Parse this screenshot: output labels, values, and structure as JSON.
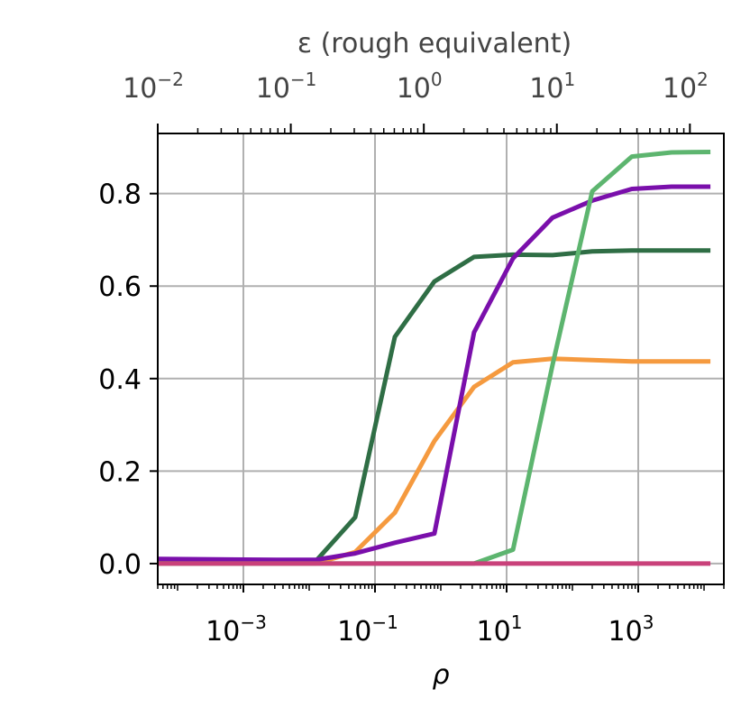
{
  "chart_data": {
    "type": "line",
    "xlabel": "ρ",
    "ylabel": "",
    "xscale": "log",
    "xlim": [
      5e-05,
      20000
    ],
    "ylim": [
      -0.045,
      0.93
    ],
    "grid": true,
    "x_ticks": [
      {
        "value": 0.001,
        "base": "10",
        "exp": "−3"
      },
      {
        "value": 0.1,
        "base": "10",
        "exp": "−1"
      },
      {
        "value": 10,
        "base": "10",
        "exp": "1"
      },
      {
        "value": 1000,
        "base": "10",
        "exp": "3"
      }
    ],
    "y_ticks": [
      {
        "value": 0.0,
        "label": "0.0"
      },
      {
        "value": 0.2,
        "label": "0.2"
      },
      {
        "value": 0.4,
        "label": "0.4"
      },
      {
        "value": 0.6,
        "label": "0.6"
      },
      {
        "value": 0.8,
        "label": "0.8"
      }
    ],
    "top_axis": {
      "label": "ε (rough equivalent)",
      "xscale": "log",
      "xlim": [
        0.01,
        180
      ],
      "ticks": [
        {
          "value": 0.01,
          "base": "10",
          "exp": "−2"
        },
        {
          "value": 0.1,
          "base": "10",
          "exp": "−1"
        },
        {
          "value": 1,
          "base": "10",
          "exp": "0"
        },
        {
          "value": 10,
          "base": "10",
          "exp": "1"
        },
        {
          "value": 100,
          "base": "10",
          "exp": "2"
        }
      ]
    },
    "x": [
      5e-05,
      0.0032,
      0.0125,
      0.05,
      0.2,
      0.8,
      3.2,
      12.5,
      50,
      200,
      800,
      3200,
      12500
    ],
    "series": [
      {
        "color": "#2f6e45",
        "values": [
          0.005,
          0.005,
          0.005,
          0.1,
          0.49,
          0.61,
          0.663,
          0.668,
          0.667,
          0.675,
          0.677,
          0.677,
          0.677
        ]
      },
      {
        "color": "#f59a3f",
        "values": [
          0.0,
          0.0,
          0.0,
          0.025,
          0.11,
          0.265,
          0.382,
          0.435,
          0.443,
          0.44,
          0.437,
          0.437,
          0.437
        ]
      },
      {
        "color": "#7a0fab",
        "values": [
          0.01,
          0.008,
          0.008,
          0.022,
          0.045,
          0.065,
          0.5,
          0.66,
          0.748,
          0.785,
          0.81,
          0.815,
          0.815
        ]
      },
      {
        "color": "#5db56f",
        "values": [
          0.0,
          0.0,
          0.0,
          0.0,
          0.0,
          0.0,
          0.0,
          0.03,
          0.43,
          0.805,
          0.88,
          0.889,
          0.89
        ]
      },
      {
        "color": "#c9417a",
        "values": [
          0.0,
          0.0,
          0.0,
          0.0,
          0.0,
          0.0,
          0.0,
          0.0,
          0.0,
          0.0,
          0.0,
          0.0,
          0.0
        ]
      }
    ]
  }
}
